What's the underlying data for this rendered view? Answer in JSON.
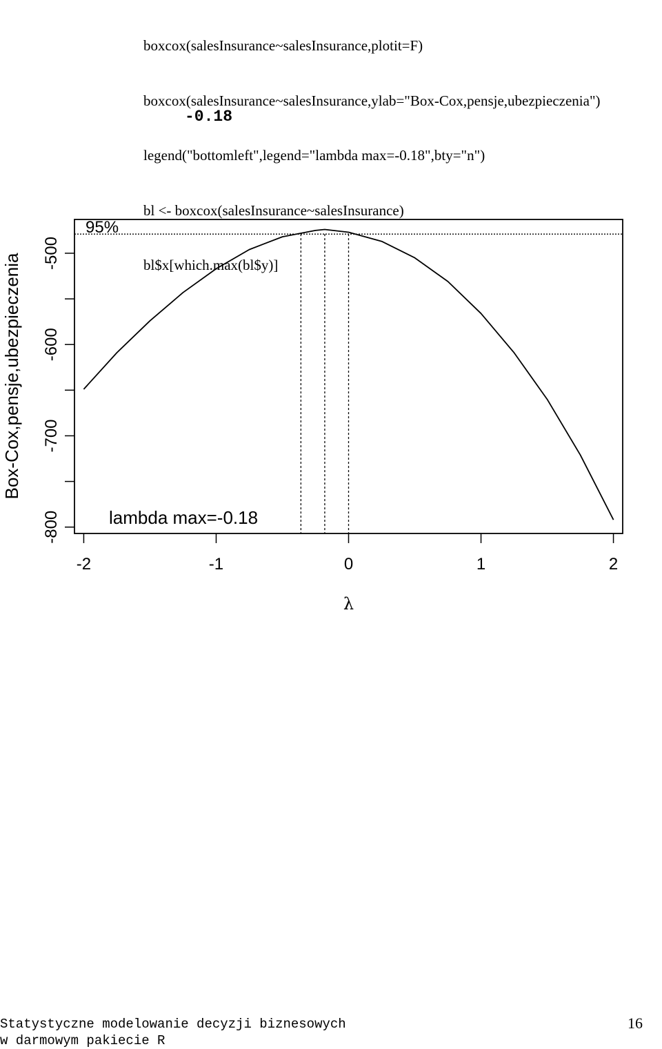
{
  "code_lines": [
    "boxcox(salesInsurance~salesInsurance,plotit=F)",
    "boxcox(salesInsurance~salesInsurance,ylab=\"Box-Cox,pensje,ubezpieczenia\")",
    "legend(\"bottomleft\",legend=\"lambda max=-0.18\",bty=\"n\")",
    "bl <- boxcox(salesInsurance~salesInsurance)",
    "bl$x[which.max(bl$y)]"
  ],
  "output_value": "-0.18",
  "chart_data": {
    "type": "line",
    "xlabel": "λ",
    "ylabel": "Box-Cox,pensje,ubezpieczenia",
    "xlim": [
      -2.07,
      2.07
    ],
    "ylim": [
      -807,
      -463
    ],
    "x_ticks": [
      -2,
      -1,
      0,
      1,
      2
    ],
    "y_ticks": [
      -800,
      -750,
      -700,
      -650,
      -600,
      -550,
      -500
    ],
    "y_tick_labels": [
      {
        "value": -800,
        "label": "-800"
      },
      {
        "value": -700,
        "label": "-700"
      },
      {
        "value": -600,
        "label": "-600"
      },
      {
        "value": -500,
        "label": "-500"
      }
    ],
    "series": [
      {
        "x": [
          -2.0,
          -1.75,
          -1.5,
          -1.25,
          -1.0,
          -0.75,
          -0.5,
          -0.25,
          -0.18,
          0.0,
          0.25,
          0.5,
          0.75,
          1.0,
          1.25,
          1.5,
          1.75,
          2.0
        ],
        "y": [
          -649,
          -609,
          -574,
          -543,
          -517,
          -496,
          -482,
          -475,
          -474,
          -477,
          -487,
          -505,
          -531,
          -566,
          -609,
          -660,
          -721,
          -792
        ]
      }
    ],
    "ci_line_y": -479,
    "ci_label": "95%",
    "ci_lambda": [
      -0.36,
      0.0
    ],
    "max_lambda": -0.18,
    "legend_text": "lambda max=-0.18",
    "legend_position": "bottomleft"
  },
  "footer": {
    "line1": "Statystyczne modelowanie decyzji biznesowych",
    "line2": "w darmowym pakiecie R",
    "page_number": "16"
  }
}
